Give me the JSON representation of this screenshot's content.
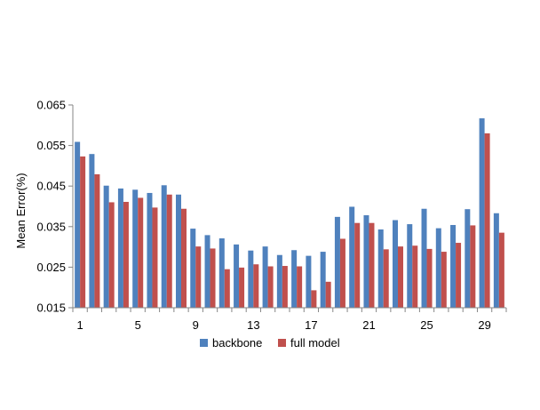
{
  "chart_data": {
    "type": "bar",
    "title": "",
    "xlabel": "",
    "ylabel": "Mean Error(%)",
    "ylim": [
      0.015,
      0.065
    ],
    "yticks": [
      "0.015",
      "0.025",
      "0.035",
      "0.045",
      "0.055",
      "0.065"
    ],
    "ytick_values": [
      0.015,
      0.025,
      0.035,
      0.045,
      0.055,
      0.065
    ],
    "categories": [
      1,
      2,
      3,
      4,
      5,
      6,
      7,
      8,
      9,
      10,
      11,
      12,
      13,
      14,
      15,
      16,
      17,
      18,
      19,
      20,
      21,
      22,
      23,
      24,
      25,
      26,
      27,
      28,
      29,
      30
    ],
    "xtick_labels": [
      "1",
      "5",
      "9",
      "13",
      "17",
      "21",
      "25",
      "29"
    ],
    "xtick_categories": [
      1,
      5,
      9,
      13,
      17,
      21,
      25,
      29
    ],
    "grid": false,
    "legend_position": "bottom",
    "series": [
      {
        "name": "backbone",
        "color": "#4F81BD",
        "values": [
          0.0559,
          0.0529,
          0.0451,
          0.0444,
          0.0441,
          0.0433,
          0.0452,
          0.0429,
          0.0345,
          0.0329,
          0.0321,
          0.0306,
          0.0291,
          0.0301,
          0.028,
          0.0292,
          0.0278,
          0.0288,
          0.0374,
          0.0399,
          0.0378,
          0.0343,
          0.0366,
          0.0356,
          0.0394,
          0.0346,
          0.0354,
          0.0393,
          0.0617,
          0.0383
        ]
      },
      {
        "name": "full model",
        "color": "#C0504D",
        "values": [
          0.0523,
          0.0479,
          0.041,
          0.0411,
          0.0421,
          0.0397,
          0.0429,
          0.0394,
          0.0301,
          0.0296,
          0.0245,
          0.0249,
          0.0257,
          0.0252,
          0.0253,
          0.0252,
          0.0193,
          0.0214,
          0.032,
          0.0359,
          0.0359,
          0.0294,
          0.0301,
          0.0303,
          0.0295,
          0.0288,
          0.031,
          0.0353,
          0.058,
          0.0335
        ]
      }
    ]
  }
}
